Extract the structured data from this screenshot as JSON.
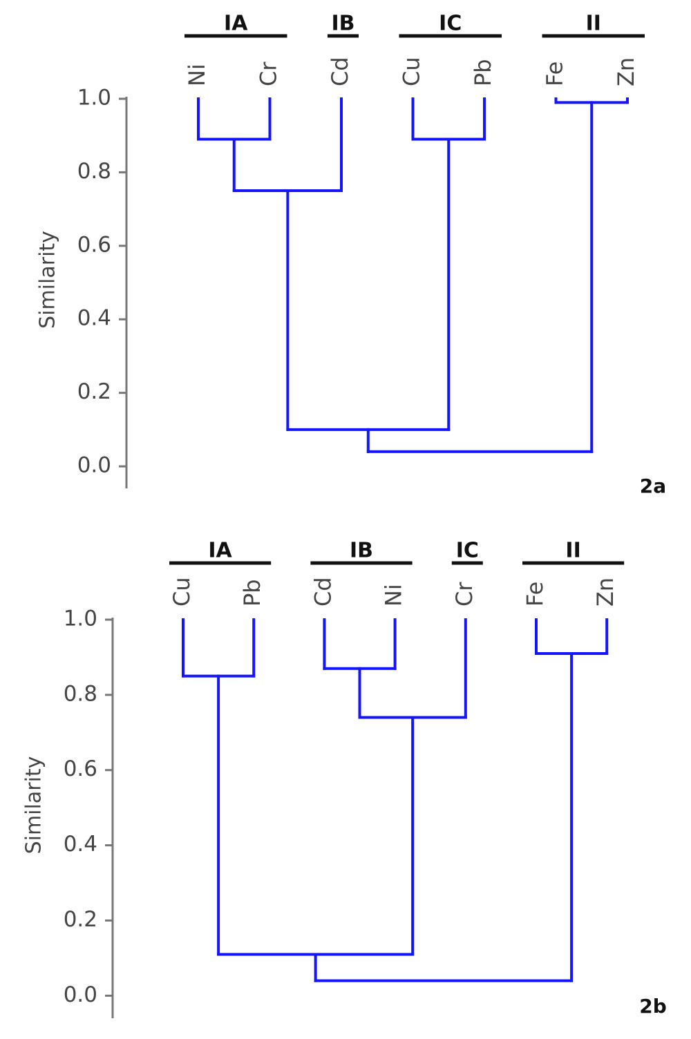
{
  "chart_data": [
    {
      "type": "dendrogram",
      "y_label": "Similarity",
      "panel_label": "2a",
      "ylim": [
        -0.06,
        1.0
      ],
      "yticks": [
        {
          "value": 0,
          "label": "0.0"
        },
        {
          "value": 0.2,
          "label": "0.2"
        },
        {
          "value": 0.4,
          "label": "0.4"
        },
        {
          "value": 0.6,
          "label": "0.6"
        },
        {
          "value": 0.8,
          "label": "0.8"
        },
        {
          "value": 1,
          "label": "1.0"
        }
      ],
      "color": "#1414ff",
      "tree": {
        "height": 0.04,
        "children": [
          {
            "height": 0.1,
            "children": [
              {
                "height": 0.75,
                "children": [
                  {
                    "height": 0.89,
                    "children": [
                      "Ni",
                      "Cr"
                    ]
                  },
                  "Cd"
                ]
              },
              {
                "height": 0.89,
                "children": [
                  "Cu",
                  "Pb"
                ]
              }
            ]
          },
          {
            "height": 0.99,
            "children": [
              "Fe",
              "Zn"
            ]
          }
        ]
      },
      "groups": [
        {
          "label": "IA",
          "leaves": [
            "Ni",
            "Cr"
          ]
        },
        {
          "label": "IB",
          "leaves": [
            "Cd"
          ]
        },
        {
          "label": "IC",
          "leaves": [
            "Cu",
            "Pb"
          ]
        },
        {
          "label": "II",
          "leaves": [
            "Fe",
            "Zn"
          ]
        }
      ]
    },
    {
      "type": "dendrogram",
      "y_label": "Similarity",
      "panel_label": "2b",
      "ylim": [
        -0.06,
        1.0
      ],
      "yticks": [
        {
          "value": 0,
          "label": "0.0"
        },
        {
          "value": 0.2,
          "label": "0.2"
        },
        {
          "value": 0.4,
          "label": "0.4"
        },
        {
          "value": 0.6,
          "label": "0.6"
        },
        {
          "value": 0.8,
          "label": "0.8"
        },
        {
          "value": 1,
          "label": "1.0"
        }
      ],
      "color": "#1414ff",
      "tree": {
        "height": 0.04,
        "children": [
          {
            "height": 0.11,
            "children": [
              {
                "height": 0.85,
                "children": [
                  "Cu",
                  "Pb"
                ]
              },
              {
                "height": 0.74,
                "children": [
                  {
                    "height": 0.87,
                    "children": [
                      "Cd",
                      "Ni"
                    ]
                  },
                  "Cr"
                ]
              }
            ]
          },
          {
            "height": 0.91,
            "children": [
              "Fe",
              "Zn"
            ]
          }
        ]
      },
      "groups": [
        {
          "label": "IA",
          "leaves": [
            "Cu",
            "Pb"
          ]
        },
        {
          "label": "IB",
          "leaves": [
            "Cd",
            "Ni"
          ]
        },
        {
          "label": "IC",
          "leaves": [
            "Cr"
          ]
        },
        {
          "label": "II",
          "leaves": [
            "Fe",
            "Zn"
          ]
        }
      ]
    }
  ]
}
